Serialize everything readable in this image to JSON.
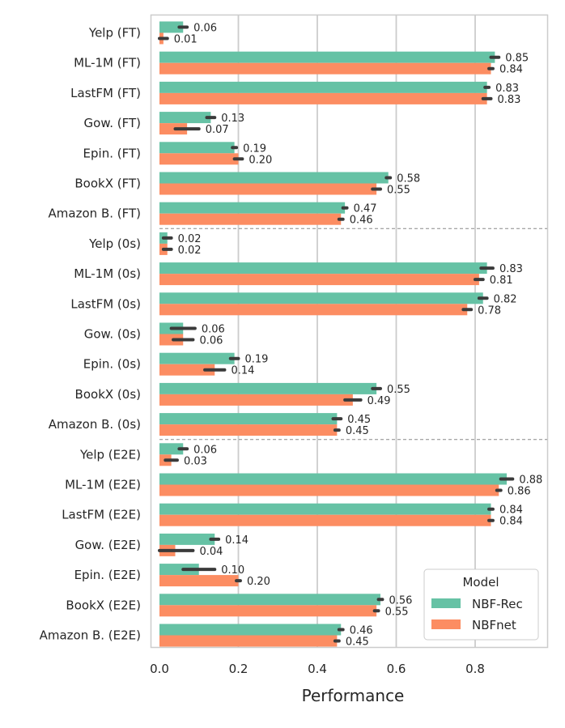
{
  "chart_data": {
    "type": "bar",
    "orientation": "horizontal",
    "xlabel": "Performance",
    "ylabel": "",
    "xlim": [
      0,
      1.0
    ],
    "xticks": [
      "0.0",
      "0.2",
      "0.4",
      "0.6",
      "0.8"
    ],
    "grid": "vertical",
    "categories": [
      "Yelp (FT)",
      "ML-1M (FT)",
      "LastFM (FT)",
      "Gow. (FT)",
      "Epin. (FT)",
      "BookX (FT)",
      "Amazon B. (FT)",
      "Yelp (0s)",
      "ML-1M (0s)",
      "LastFM (0s)",
      "Gow. (0s)",
      "Epin. (0s)",
      "BookX (0s)",
      "Amazon B. (0s)",
      "Yelp (E2E)",
      "ML-1M (E2E)",
      "LastFM (E2E)",
      "Gow. (E2E)",
      "Epin. (E2E)",
      "BookX (E2E)",
      "Amazon B. (E2E)"
    ],
    "series": [
      {
        "name": "NBF-Rec",
        "color": "#66c2a5",
        "values": [
          0.06,
          0.85,
          0.83,
          0.13,
          0.19,
          0.58,
          0.47,
          0.02,
          0.83,
          0.82,
          0.06,
          0.19,
          0.55,
          0.45,
          0.06,
          0.88,
          0.84,
          0.14,
          0.1,
          0.56,
          0.46
        ],
        "labels": [
          "0.06",
          "0.85",
          "0.83",
          "0.13",
          "0.19",
          "0.58",
          "0.47",
          "0.02",
          "0.83",
          "0.82",
          "0.06",
          "0.19",
          "0.55",
          "0.45",
          "0.06",
          "0.88",
          "0.84",
          "0.14",
          "0.10",
          "0.56",
          "0.46"
        ],
        "error": [
          0.01,
          0.01,
          0.005,
          0.01,
          0.005,
          0.005,
          0.005,
          0.01,
          0.015,
          0.01,
          0.03,
          0.01,
          0.01,
          0.01,
          0.01,
          0.015,
          0.005,
          0.01,
          0.04,
          0.005,
          0.005
        ]
      },
      {
        "name": "NBFnet",
        "color": "#fc8d62",
        "values": [
          0.01,
          0.84,
          0.83,
          0.07,
          0.2,
          0.55,
          0.46,
          0.02,
          0.81,
          0.78,
          0.06,
          0.14,
          0.49,
          0.45,
          0.03,
          0.86,
          0.84,
          0.04,
          0.2,
          0.55,
          0.45
        ],
        "labels": [
          "0.01",
          "0.84",
          "0.83",
          "0.07",
          "0.20",
          "0.55",
          "0.46",
          "0.02",
          "0.81",
          "0.78",
          "0.06",
          "0.14",
          "0.49",
          "0.45",
          "0.03",
          "0.86",
          "0.84",
          "0.04",
          "0.20",
          "0.55",
          "0.45"
        ],
        "error": [
          0.01,
          0.005,
          0.01,
          0.03,
          0.01,
          0.01,
          0.005,
          0.01,
          0.01,
          0.01,
          0.025,
          0.025,
          0.02,
          0.005,
          0.015,
          0.005,
          0.005,
          0.045,
          0.005,
          0.005,
          0.005
        ]
      }
    ],
    "separators_after_index": [
      6,
      13
    ],
    "legend": {
      "title": "Model",
      "position": "bottom-right"
    }
  }
}
